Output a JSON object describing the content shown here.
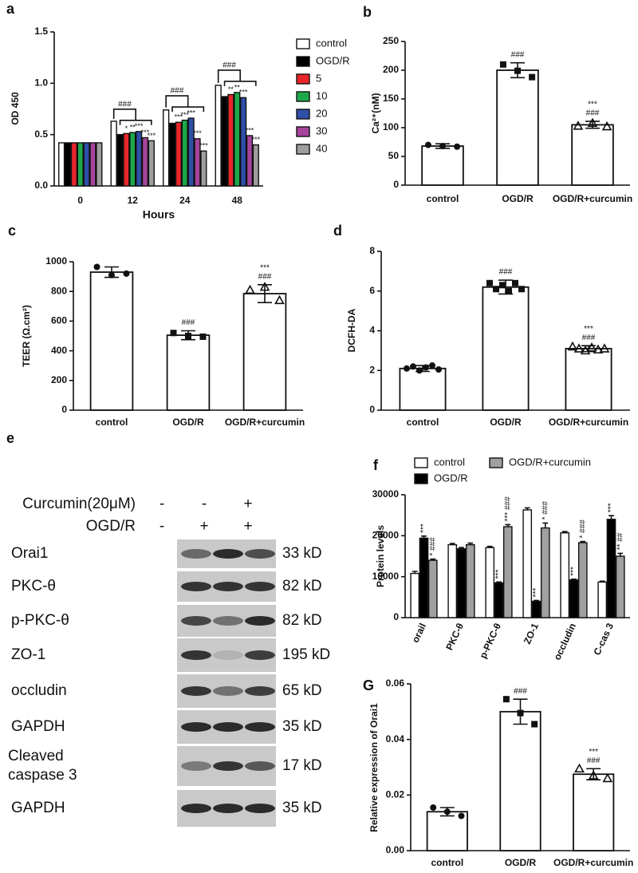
{
  "chart_data": [
    {
      "type": "bar",
      "panel": "a",
      "xlabel": "Hours",
      "ylabel": "OD 450",
      "categories": [
        "0",
        "12",
        "24",
        "48"
      ],
      "ylim": [
        0,
        1.5
      ],
      "yticks": [
        {
          "value": 0,
          "label": "0.0"
        },
        {
          "value": 0.5,
          "label": "0.5"
        },
        {
          "value": 1,
          "label": "1.0"
        },
        {
          "value": 1.5,
          "label": "1.5"
        }
      ],
      "legend": "right",
      "series": [
        {
          "name": "control",
          "color": "#ffffff",
          "values": [
            0.42,
            0.63,
            0.74,
            0.98
          ],
          "annotations": [
            null,
            "###",
            "###",
            "###"
          ]
        },
        {
          "name": "OGD/R",
          "color": "#000000",
          "values": [
            0.42,
            0.5,
            0.61,
            0.87
          ]
        },
        {
          "name": "5",
          "color": "#e8252a",
          "values": [
            0.42,
            0.51,
            0.62,
            0.89
          ],
          "annotations": [
            null,
            "*",
            "***",
            "**"
          ]
        },
        {
          "name": "10",
          "color": "#1ea84a",
          "values": [
            0.42,
            0.52,
            0.64,
            0.91
          ],
          "annotations": [
            null,
            "**",
            "***",
            "**"
          ]
        },
        {
          "name": "20",
          "color": "#2f4fa8",
          "values": [
            0.42,
            0.53,
            0.66,
            0.86
          ],
          "annotations": [
            null,
            "***",
            "***",
            "***"
          ]
        },
        {
          "name": "30",
          "color": "#a7449b",
          "values": [
            0.42,
            0.47,
            0.46,
            0.49
          ],
          "annotations": [
            null,
            "***",
            "***",
            "***"
          ]
        },
        {
          "name": "40",
          "color": "#9e9e9e",
          "values": [
            0.42,
            0.44,
            0.34,
            0.4
          ],
          "annotations": [
            null,
            "***",
            "***",
            "***"
          ]
        }
      ]
    },
    {
      "type": "bar",
      "panel": "b",
      "ylabel": "Ca²⁺(nM)",
      "color": "#ffffff",
      "categories": [
        "control",
        "OGD/R",
        "OGD/R+curcumin"
      ],
      "values": [
        68,
        200,
        105
      ],
      "errors": [
        4,
        13,
        6
      ],
      "points": [
        [
          70,
          68,
          67
        ],
        [
          210,
          199,
          188
        ],
        [
          103,
          108,
          102
        ]
      ],
      "annotations": [
        null,
        [
          "###"
        ],
        [
          "***",
          "###"
        ]
      ],
      "ylim": [
        0,
        250
      ],
      "yticks": [
        0,
        50,
        100,
        150,
        200,
        250
      ]
    },
    {
      "type": "bar",
      "panel": "c",
      "ylabel": "TEER (Ω.cm²)",
      "color": "#ffffff",
      "categories": [
        "control",
        "OGD/R",
        "OGD/R+curcumin"
      ],
      "values": [
        930,
        505,
        785
      ],
      "errors": [
        35,
        30,
        60
      ],
      "points": [
        [
          965,
          910,
          920
        ],
        [
          520,
          500,
          495
        ],
        [
          810,
          830,
          740
        ]
      ],
      "annotations": [
        null,
        [
          "###"
        ],
        [
          "***",
          "###"
        ]
      ],
      "ylim": [
        0,
        1000
      ],
      "yticks": [
        0,
        200,
        400,
        600,
        800,
        1000
      ]
    },
    {
      "type": "bar",
      "panel": "d",
      "ylabel": "DCFH-DA",
      "color": "#ffffff",
      "categories": [
        "control",
        "OGD/R",
        "OGD/R+curcumin"
      ],
      "values": [
        2.1,
        6.2,
        3.1
      ],
      "errors": [
        0.15,
        0.35,
        0.15
      ],
      "points": [
        [
          2.1,
          2.2,
          2.0,
          2.15,
          2.25,
          2.05
        ],
        [
          6.4,
          6.1,
          6.3,
          6.0,
          6.4,
          6.1
        ],
        [
          3.2,
          3.1,
          3.0,
          3.15,
          3.05,
          3.1
        ]
      ],
      "annotations": [
        null,
        [
          "###"
        ],
        [
          "***",
          "###"
        ]
      ],
      "ylim": [
        0,
        8
      ],
      "yticks": [
        0,
        2,
        4,
        6,
        8
      ]
    },
    {
      "type": "bar",
      "panel": "f",
      "ylabel": "Protein levels",
      "categories": [
        "orail",
        "PKC-θ",
        "p-PKC-θ",
        "ZO-1",
        "occludin",
        "C-cas 3"
      ],
      "ylim": [
        0,
        30000
      ],
      "yticks": [
        0,
        10000,
        20000,
        30000
      ],
      "legend": "top",
      "series": [
        {
          "name": "control",
          "color": "#ffffff",
          "values": [
            10800,
            17800,
            17100,
            26300,
            20700,
            8700
          ],
          "errors": [
            500,
            300,
            300,
            500,
            300,
            200
          ]
        },
        {
          "name": "OGD/R",
          "color": "#000000",
          "values": [
            19400,
            16800,
            8500,
            4000,
            9200,
            24000
          ],
          "errors": [
            500,
            300,
            200,
            200,
            200,
            900
          ],
          "annotations": [
            "***",
            null,
            "***",
            "***",
            "***",
            "***"
          ]
        },
        {
          "name": "OGD/R+curcumin",
          "color": "#a0a0a0",
          "values": [
            14000,
            17800,
            22200,
            21900,
            18300,
            15000
          ],
          "errors": [
            300,
            400,
            500,
            1200,
            300,
            700
          ],
          "annotations": [
            "* ###",
            null,
            "*** ###",
            "* ###",
            "* ###",
            "** ##"
          ]
        }
      ]
    },
    {
      "type": "bar",
      "panel": "G",
      "ylabel": "Relative expression of Orai1",
      "color": "#ffffff",
      "categories": [
        "control",
        "OGD/R",
        "OGD/R+curcumin"
      ],
      "values": [
        0.014,
        0.05,
        0.0275
      ],
      "errors": [
        0.0015,
        0.0045,
        0.002
      ],
      "points": [
        [
          0.0155,
          0.014,
          0.0125
        ],
        [
          0.0545,
          0.0495,
          0.0455
        ],
        [
          0.0295,
          0.027,
          0.026
        ]
      ],
      "annotations": [
        null,
        [
          "###"
        ],
        [
          "***",
          "###"
        ]
      ],
      "ylim": [
        0,
        0.06
      ],
      "yticks": [
        {
          "value": 0,
          "label": "0.00"
        },
        {
          "value": 0.02,
          "label": "0.02"
        },
        {
          "value": 0.04,
          "label": "0.04"
        },
        {
          "value": 0.06,
          "label": "0.06"
        }
      ]
    }
  ],
  "blot": {
    "panel": "e",
    "treatments": [
      {
        "label": "Curcumin(20μM)",
        "signs": [
          "-",
          "-",
          "+"
        ]
      },
      {
        "label": "OGD/R",
        "signs": [
          "-",
          "+",
          "+"
        ]
      }
    ],
    "rows": [
      {
        "label": "Orai1",
        "size": "33 kD"
      },
      {
        "label": "PKC-θ",
        "size": "82 kD"
      },
      {
        "label": "p-PKC-θ",
        "size": "82 kD"
      },
      {
        "label": "ZO-1",
        "size": "195 kD"
      },
      {
        "label": "occludin",
        "size": "65 kD"
      },
      {
        "label": "GAPDH",
        "size": "35 kD"
      },
      {
        "label": [
          "Cleaved",
          "caspase 3"
        ],
        "size": "17 kD"
      },
      {
        "label": "GAPDH",
        "size": "35 kD"
      }
    ]
  }
}
